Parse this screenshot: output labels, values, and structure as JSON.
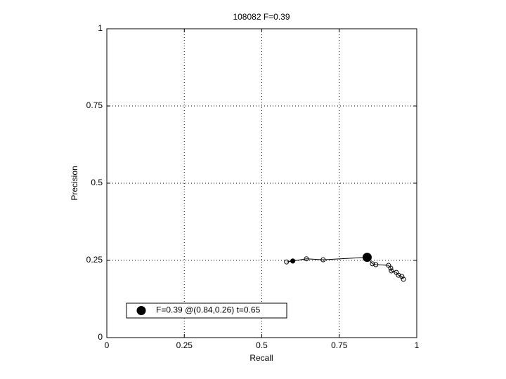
{
  "chart_data": {
    "type": "line",
    "title": "108082 F=0.39",
    "x_label": "Recall",
    "y_label": "Precision",
    "xlim": [
      0,
      1
    ],
    "ylim": [
      0,
      1
    ],
    "xticks": [
      0,
      0.25,
      0.5,
      0.75,
      1
    ],
    "yticks": [
      0,
      0.25,
      0.5,
      0.75,
      1
    ],
    "grid": true,
    "legend_location": "southwest",
    "series": [
      {
        "color": "#000000",
        "marker_fill": "none",
        "marker_size": 3,
        "x": [
          0.58,
          0.6,
          0.644,
          0.698,
          0.84,
          0.857,
          0.868,
          0.909,
          0.916,
          0.918,
          0.934,
          0.941,
          0.952,
          0.957
        ],
        "values": [
          0.245,
          0.248,
          0.255,
          0.252,
          0.26,
          0.239,
          0.236,
          0.234,
          0.225,
          0.216,
          0.211,
          0.202,
          0.198,
          0.189
        ]
      },
      {
        "color": "#000000",
        "marker_fill": "#000000",
        "marker_size": 3,
        "x": [
          0.6
        ],
        "values": [
          0.248
        ]
      },
      {
        "name": "F=0.39 @(0.84,0.26) t=0.65",
        "color": "#000000",
        "marker_fill": "#000000",
        "marker_size": 6,
        "x": [
          0.84
        ],
        "values": [
          0.26
        ]
      }
    ]
  }
}
